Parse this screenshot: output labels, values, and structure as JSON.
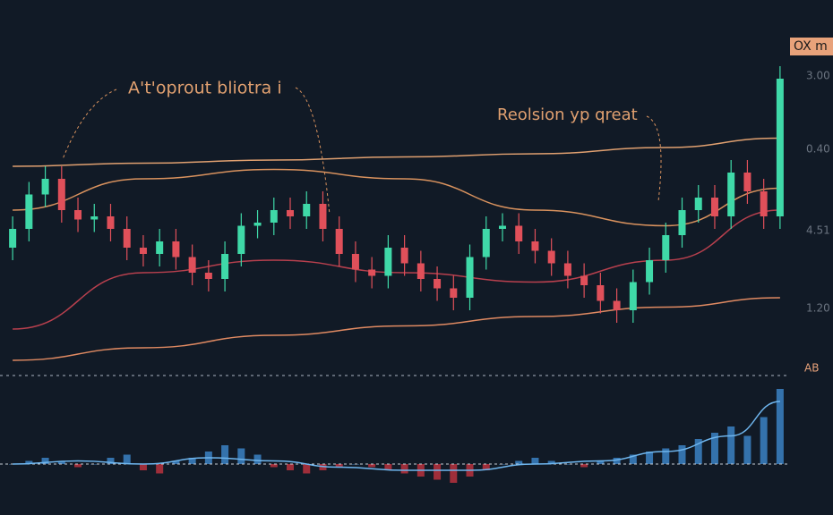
{
  "chart_data": {
    "type": "candlestick",
    "annotations": [
      "A't'oprout bliotra i",
      "Reolsion yp qreat"
    ],
    "badge": "OX m",
    "axis_labels": [
      "3.00",
      "0.40",
      "4.51",
      "1.20"
    ],
    "indicator_label": "AB",
    "ylim": [
      0,
      100
    ],
    "up_color": "#3fd9a8",
    "down_color": "#e0505a",
    "open": [
      38,
      44,
      55,
      60,
      50,
      47,
      48,
      44,
      38,
      36,
      40,
      35,
      30,
      28,
      36,
      45,
      46,
      50,
      48,
      52,
      44,
      36,
      31,
      29,
      38,
      33,
      28,
      25,
      22,
      35,
      44,
      45,
      40,
      37,
      33,
      29,
      26,
      21,
      18,
      27,
      34,
      42,
      50,
      54,
      48,
      62,
      56,
      48
    ],
    "high": [
      48,
      59,
      64,
      64,
      54,
      52,
      52,
      48,
      42,
      44,
      44,
      39,
      34,
      40,
      49,
      50,
      54,
      54,
      56,
      56,
      48,
      40,
      35,
      42,
      42,
      37,
      32,
      29,
      39,
      48,
      49,
      49,
      44,
      41,
      37,
      33,
      30,
      25,
      31,
      38,
      46,
      54,
      58,
      58,
      66,
      66,
      60,
      96
    ],
    "low": [
      34,
      40,
      51,
      46,
      43,
      43,
      40,
      34,
      32,
      32,
      31,
      26,
      24,
      24,
      32,
      41,
      42,
      44,
      44,
      40,
      32,
      27,
      25,
      25,
      29,
      24,
      21,
      18,
      18,
      31,
      40,
      36,
      33,
      29,
      25,
      22,
      17,
      14,
      14,
      23,
      30,
      38,
      46,
      44,
      44,
      52,
      44,
      44
    ],
    "close": [
      44,
      55,
      60,
      50,
      47,
      48,
      44,
      38,
      36,
      40,
      35,
      30,
      28,
      36,
      45,
      46,
      50,
      48,
      52,
      44,
      36,
      31,
      29,
      38,
      33,
      28,
      25,
      22,
      35,
      44,
      45,
      40,
      37,
      33,
      29,
      26,
      21,
      18,
      27,
      34,
      42,
      50,
      54,
      48,
      62,
      56,
      48,
      92
    ],
    "overlays": [
      {
        "color": "#e0a070",
        "x": [
          0,
          8,
          16,
          24,
          32,
          40,
          47
        ],
        "values": [
          64,
          65,
          66,
          67,
          68,
          70,
          73
        ]
      },
      {
        "color": "#d9925e",
        "x": [
          0,
          8,
          16,
          24,
          32,
          40,
          47
        ],
        "values": [
          50,
          60,
          63,
          60,
          50,
          45,
          57
        ]
      },
      {
        "color": "#b8404e",
        "x": [
          0,
          8,
          16,
          24,
          32,
          40,
          47
        ],
        "values": [
          12,
          30,
          34,
          30,
          27,
          34,
          50
        ]
      },
      {
        "color": "#e08a62",
        "x": [
          0,
          8,
          16,
          24,
          32,
          40,
          47
        ],
        "values": [
          2,
          6,
          10,
          13,
          16,
          19,
          22
        ]
      }
    ],
    "indicator": {
      "ylim": [
        -6,
        24
      ],
      "up_color": "#3b82c4",
      "down_color": "#b8323e",
      "values": [
        0,
        1,
        2,
        1,
        -1,
        0,
        2,
        3,
        -2,
        -3,
        1,
        2,
        4,
        6,
        5,
        3,
        -1,
        -2,
        -3,
        -2,
        -1,
        0,
        -1,
        -2,
        -3,
        -4,
        -5,
        -6,
        -4,
        -2,
        0,
        1,
        2,
        1,
        0,
        -1,
        1,
        2,
        3,
        4,
        5,
        6,
        8,
        10,
        12,
        9,
        15,
        24
      ],
      "line_color": "#6fb6ee",
      "line_x": [
        0,
        4,
        8,
        12,
        16,
        20,
        24,
        28,
        32,
        36,
        40,
        44,
        47
      ],
      "line_values": [
        0,
        1,
        0,
        2,
        1,
        -1,
        -2,
        -2,
        0,
        1,
        4,
        9,
        20
      ]
    }
  }
}
